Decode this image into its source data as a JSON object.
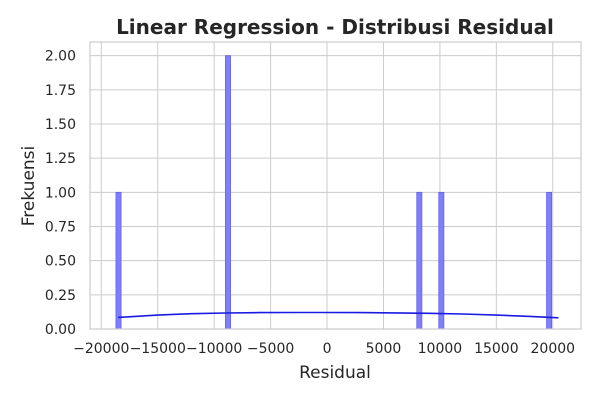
{
  "chart_data": {
    "type": "bar",
    "title": "Linear Regression - Distribusi Residual",
    "xlabel": "Residual",
    "ylabel": "Frekuensi",
    "xlim": [
      -21000,
      22500
    ],
    "ylim": [
      0,
      2.1
    ],
    "x_ticks": [
      -20000,
      -15000,
      -10000,
      -5000,
      0,
      5000,
      10000,
      15000,
      20000
    ],
    "x_tick_labels": [
      "−20000",
      "−15000",
      "−10000",
      "−5000",
      "0",
      "5000",
      "10000",
      "15000",
      "20000"
    ],
    "y_ticks": [
      0,
      0.25,
      0.5,
      0.75,
      1.0,
      1.25,
      1.5,
      1.75,
      2.0
    ],
    "y_tick_labels": [
      "0.00",
      "0.25",
      "0.50",
      "0.75",
      "1.00",
      "1.25",
      "1.50",
      "1.75",
      "2.00"
    ],
    "grid": true,
    "bar_color": "#7f7ffd",
    "kde_color": "#1a1ae0",
    "bins": [
      {
        "x0": -18700,
        "x1": -18250,
        "count": 1
      },
      {
        "x0": -9000,
        "x1": -8550,
        "count": 2
      },
      {
        "x0": 7950,
        "x1": 8400,
        "count": 1
      },
      {
        "x0": 9900,
        "x1": 10350,
        "count": 1
      },
      {
        "x0": 19450,
        "x1": 19900,
        "count": 1
      }
    ],
    "kde_curve": {
      "x": [
        -18500,
        -15000,
        -12000,
        -9000,
        -6000,
        -3000,
        0,
        3000,
        6000,
        9000,
        12000,
        15000,
        18000,
        20500
      ],
      "y": [
        0.085,
        0.102,
        0.112,
        0.117,
        0.12,
        0.121,
        0.121,
        0.12,
        0.118,
        0.115,
        0.11,
        0.102,
        0.092,
        0.082
      ]
    }
  }
}
